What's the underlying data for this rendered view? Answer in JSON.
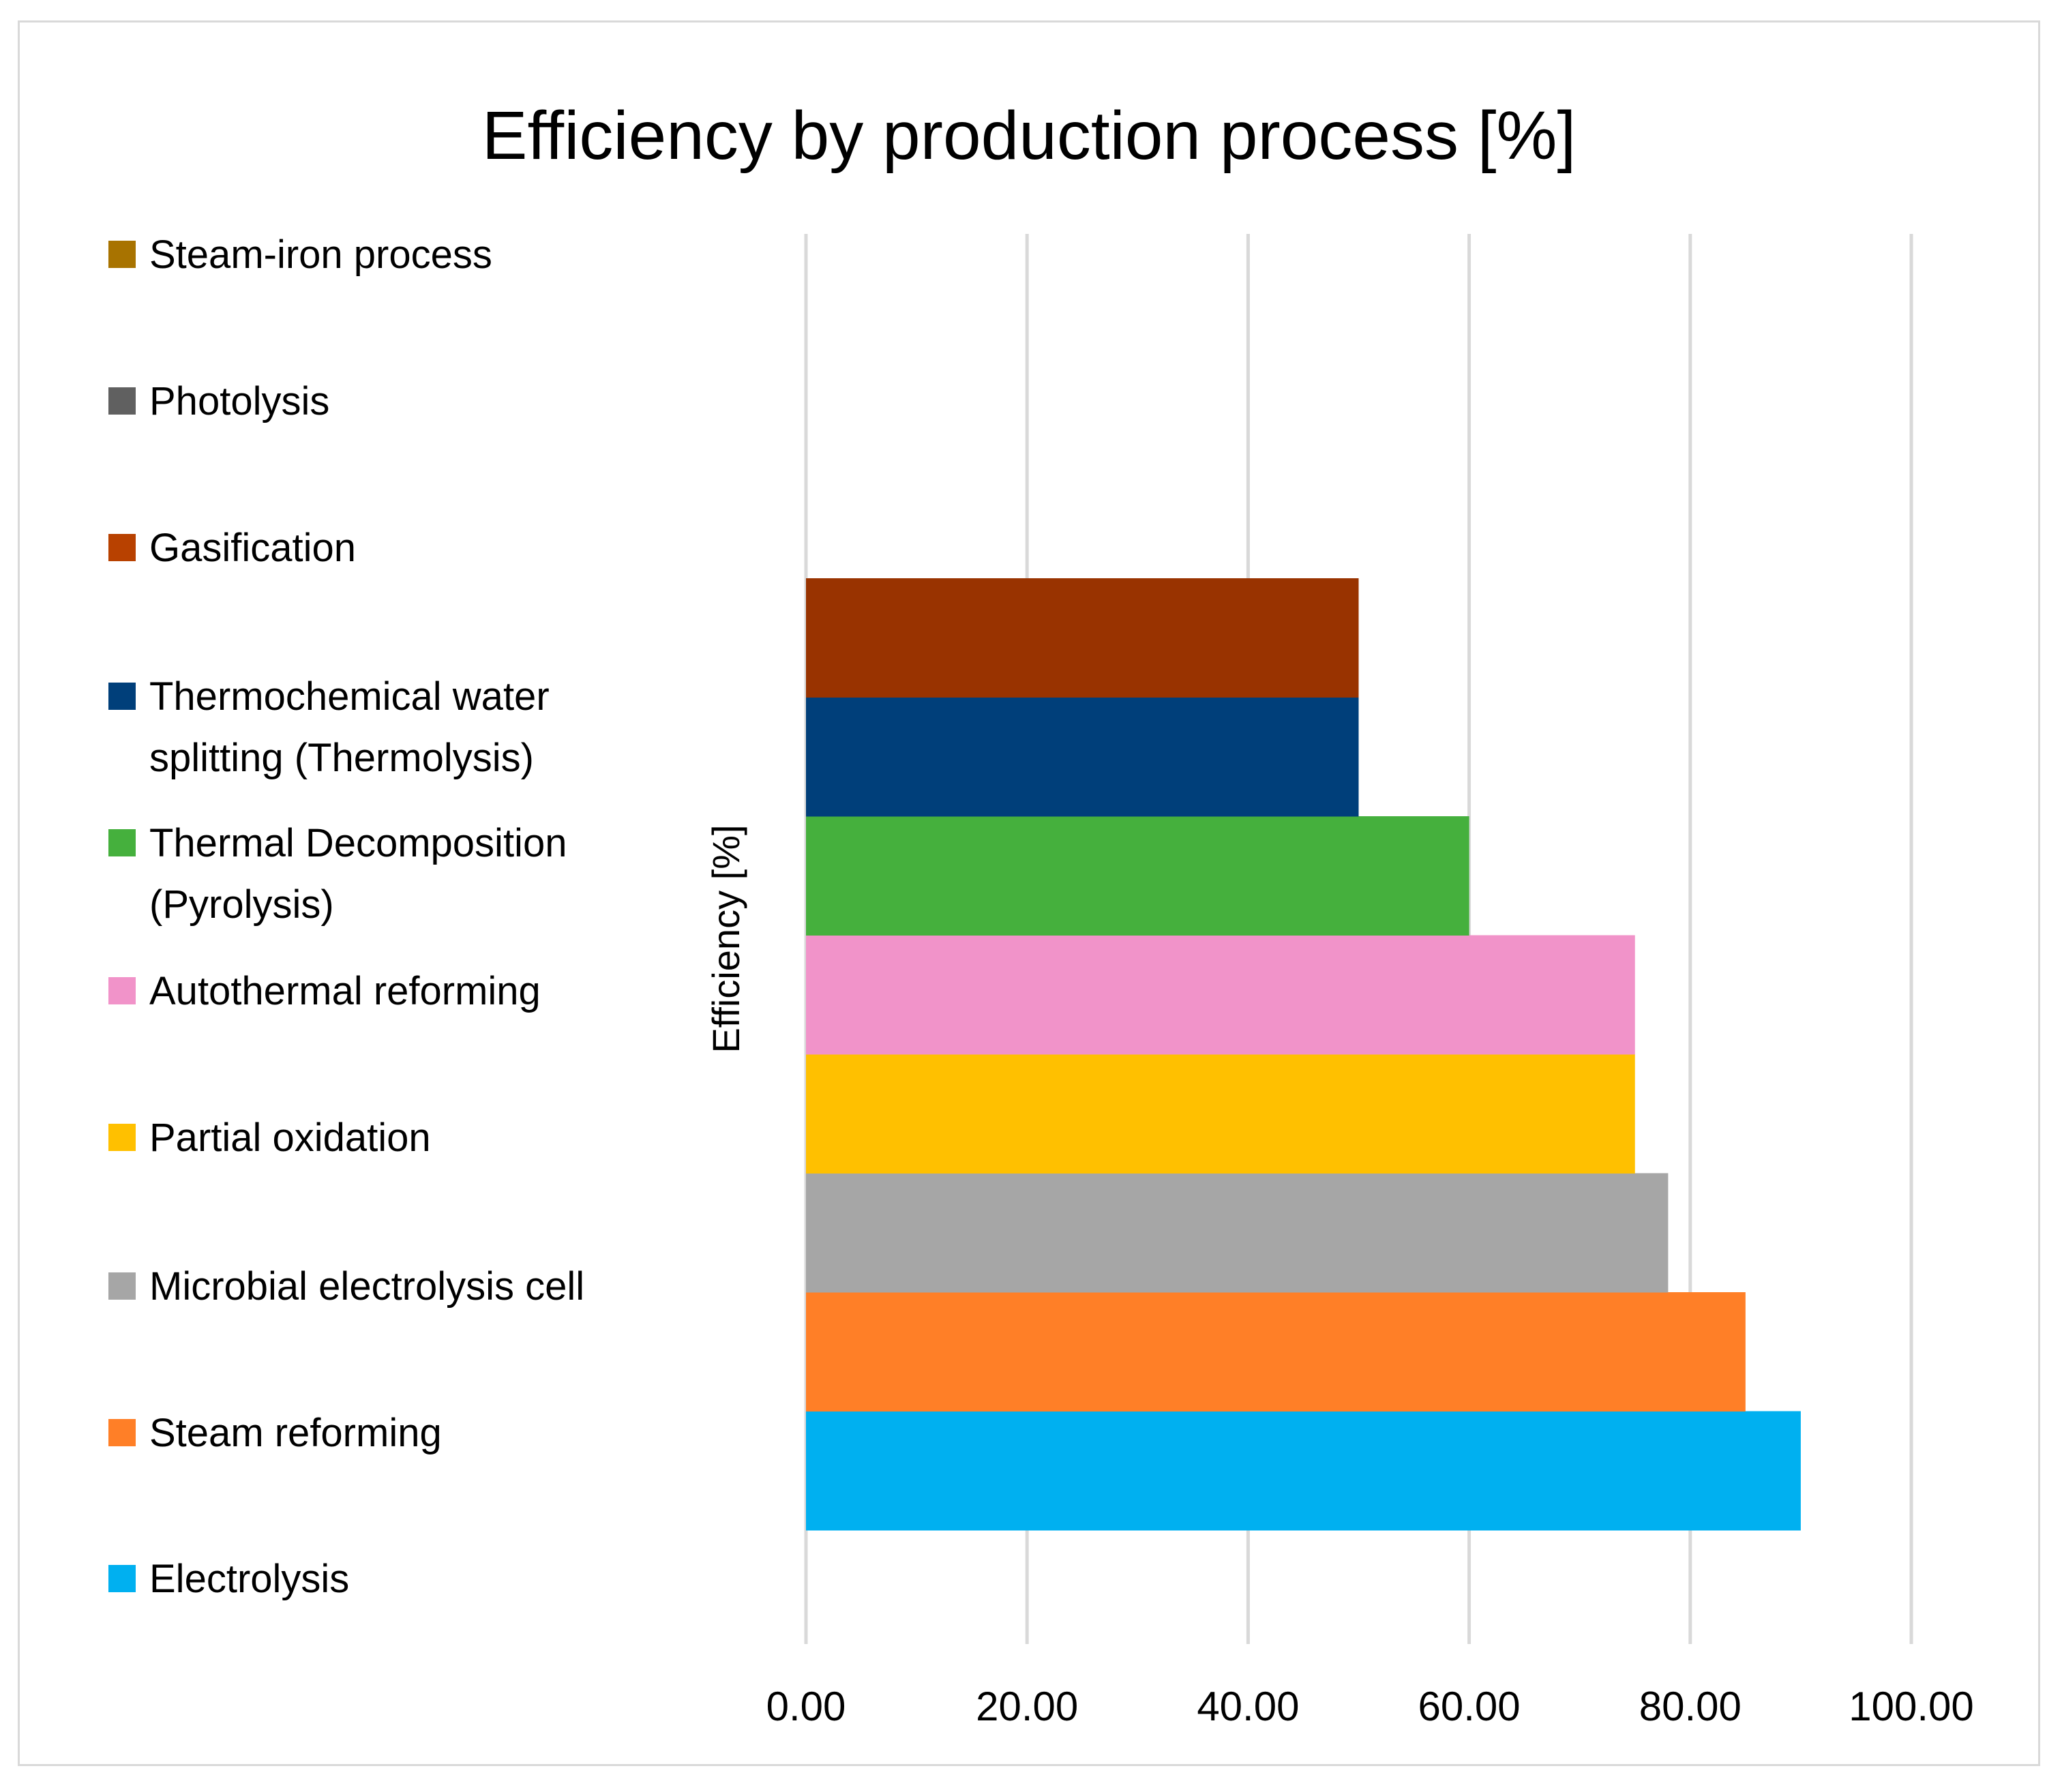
{
  "chart_data": {
    "type": "bar",
    "orientation": "horizontal",
    "title": "Efficiency by production process [%]",
    "xlabel": "",
    "ylabel": "Efficiency [%]",
    "xlim": [
      0,
      100
    ],
    "xticks": [
      "0.00",
      "20.00",
      "40.00",
      "60.00",
      "80.00",
      "100.00"
    ],
    "grid": true,
    "legend_position": "left",
    "categories": [
      "Electrolysis",
      "Steam reforming",
      "Microbial electrolysis cell",
      "Partial oxidation",
      "Autothermal reforming",
      "Thermal Decomposition (Pyrolysis)",
      "Thermochemical water splitting (Thermolysis)",
      "Gasification",
      "Photolysis",
      "Steam-iron process"
    ],
    "series": [
      {
        "name": "Electrolysis",
        "value": 90,
        "color": "#00B0F0"
      },
      {
        "name": "Steam reforming",
        "value": 85,
        "color": "#FF7F27"
      },
      {
        "name": "Microbial electrolysis cell",
        "value": 78,
        "color": "#A6A6A6"
      },
      {
        "name": "Partial oxidation",
        "value": 75,
        "color": "#FFC000"
      },
      {
        "name": "Autothermal reforming",
        "value": 75,
        "color": "#F193C9"
      },
      {
        "name": "Thermal Decomposition (Pyrolysis)",
        "value": 60,
        "color": "#45B03D"
      },
      {
        "name": "Thermochemical water splitting (Thermolysis)",
        "value": 50,
        "color": "#003F7A"
      },
      {
        "name": "Gasification",
        "value": 50,
        "color": "#993300"
      },
      {
        "name": "Photolysis",
        "value": null,
        "color": "#606060"
      },
      {
        "name": "Steam-iron process",
        "value": null,
        "color": "#A87300"
      }
    ],
    "legend_labels": [
      {
        "name": "Steam-iron process",
        "lines": [
          "Steam-iron process"
        ],
        "color": "#A87300"
      },
      {
        "name": "Photolysis",
        "lines": [
          "Photolysis"
        ],
        "color": "#606060"
      },
      {
        "name": "Gasification",
        "lines": [
          "Gasification"
        ],
        "color": "#B84100"
      },
      {
        "name": "Thermochemical water splitting (Thermolysis)",
        "lines": [
          "Thermochemical water",
          "splitting (Thermolysis)"
        ],
        "color": "#003F7A"
      },
      {
        "name": "Thermal Decomposition (Pyrolysis)",
        "lines": [
          "Thermal Decomposition",
          "(Pyrolysis)"
        ],
        "color": "#45B03D"
      },
      {
        "name": "Autothermal reforming",
        "lines": [
          "Autothermal reforming"
        ],
        "color": "#F193C9"
      },
      {
        "name": "Partial oxidation",
        "lines": [
          "Partial oxidation"
        ],
        "color": "#FFC000"
      },
      {
        "name": "Microbial electrolysis cell",
        "lines": [
          "Microbial electrolysis cell"
        ],
        "color": "#A6A6A6"
      },
      {
        "name": "Steam reforming",
        "lines": [
          "Steam reforming"
        ],
        "color": "#FF7F27"
      },
      {
        "name": "Electrolysis",
        "lines": [
          "Electrolysis"
        ],
        "color": "#00B0F0"
      }
    ]
  }
}
